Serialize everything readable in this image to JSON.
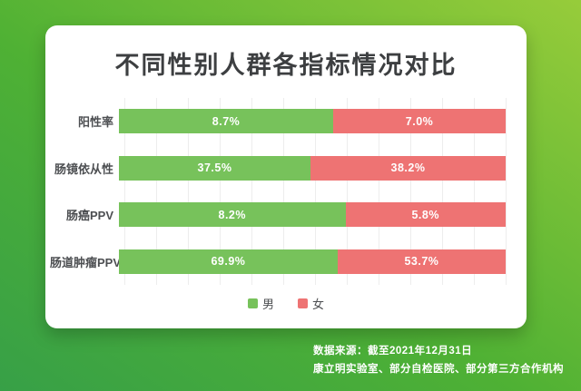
{
  "colors": {
    "background_gradient_from": "#37a047",
    "background_gradient_mid": "#4fb134",
    "background_gradient_to": "#97cc3a",
    "card_background": "#ffffff",
    "title_text": "#3d3f41",
    "male_bar": "#77c25b",
    "female_bar": "#ee7373",
    "gridline": "#ededed",
    "bar_value_text": "#ffffff",
    "footer_text": "#ffffff"
  },
  "chart_data": {
    "type": "bar",
    "subtype": "horizontal-100-percent-stacked",
    "title": "不同性别人群各指标情况对比",
    "categories": [
      "阳性率",
      "肠镜依从性",
      "肠癌PPV",
      "肠道肿瘤PPV"
    ],
    "series": [
      {
        "name": "男",
        "color": "#77c25b",
        "values": [
          8.7,
          37.5,
          8.2,
          69.9
        ]
      },
      {
        "name": "女",
        "color": "#ee7373",
        "values": [
          7.0,
          38.2,
          5.8,
          53.7
        ]
      }
    ],
    "value_label_format": "one-decimal-percent",
    "value_labels": [
      [
        "8.7%",
        "7.0%"
      ],
      [
        "37.5%",
        "38.2%"
      ],
      [
        "8.2%",
        "5.8%"
      ],
      [
        "69.9%",
        "53.7%"
      ]
    ],
    "grid": true,
    "grid_divisions": 12,
    "legend_position": "bottom"
  },
  "legend": {
    "items": [
      {
        "label": "男",
        "color": "#77c25b"
      },
      {
        "label": "女",
        "color": "#ee7373"
      }
    ]
  },
  "footer": {
    "line1": "数据来源：截至2021年12月31日",
    "line2": "康立明实验室、部分自检医院、部分第三方合作机构"
  }
}
